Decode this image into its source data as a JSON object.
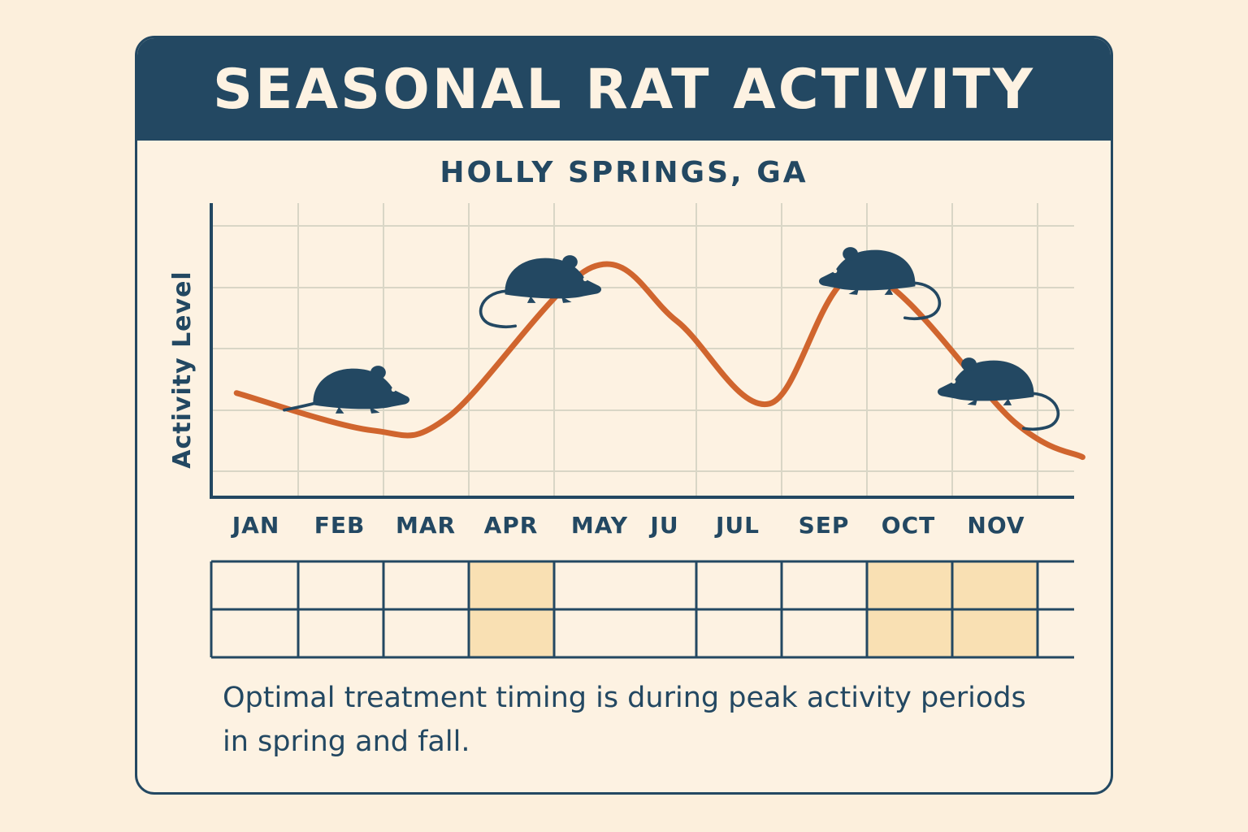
{
  "title": "SEASONAL RAT ACTIVITY",
  "subtitle": "HOLLY SPRINGS, GA",
  "note": "Optimal treatment timing is during peak activity periods in spring and fall.",
  "colors": {
    "navy": "#234862",
    "curve": "#d0652e",
    "highlight": "#f9e0b3",
    "background": "#fcefdc",
    "grid": "#d9d6c6"
  },
  "chart_data": {
    "type": "line",
    "ylabel": "Activity Level",
    "xlabel": "",
    "month_labels": [
      "JAN",
      "FEB",
      "MAR",
      "APR",
      "MAY",
      "JU",
      "JUL",
      "SEP",
      "OCT",
      "NOV"
    ],
    "x": [
      0,
      1.6,
      2.5,
      4.2,
      5.2,
      6.3,
      7.4,
      9.2,
      10.0
    ],
    "y": [
      3.9,
      2.5,
      3.0,
      8.6,
      6.6,
      3.5,
      8.4,
      2.8,
      1.5
    ],
    "xlim": [
      -0.3,
      9.9
    ],
    "ylim": [
      0,
      11
    ],
    "grid": true,
    "icons": [
      "rat-icon",
      "rat-icon",
      "rat-icon",
      "rat-icon"
    ],
    "treatment_grid": {
      "rows": 2,
      "highlighted_columns": [
        3,
        7,
        8
      ]
    }
  }
}
